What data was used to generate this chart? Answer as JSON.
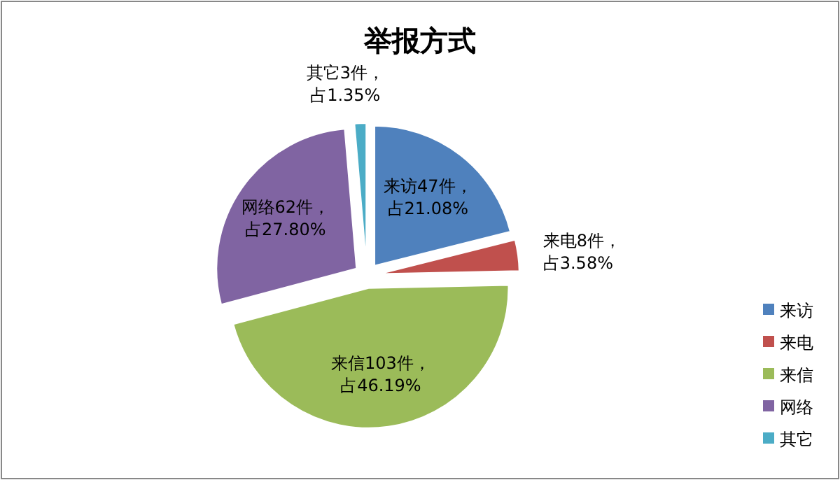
{
  "chart_data": {
    "type": "pie",
    "title": "举报方式",
    "categories": [
      "来访",
      "来电",
      "来信",
      "网络",
      "其它"
    ],
    "values": [
      47,
      8,
      103,
      62,
      3
    ],
    "colors": [
      "#4f81bd",
      "#c0504d",
      "#9bbb59",
      "#8064a2",
      "#4bacc6"
    ],
    "value_labels": [
      "来访47件，占21.08%",
      "来电8件，占3.58%",
      "来信103件，占46.19%",
      "网络62件，占27.80%",
      "其它3件，占1.35%"
    ],
    "legend": "right"
  }
}
